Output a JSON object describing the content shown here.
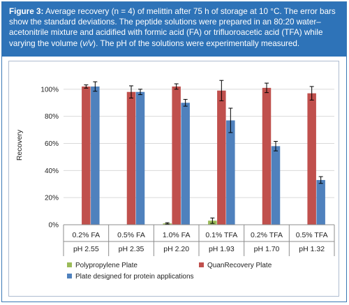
{
  "caption": {
    "label": "Figure 3:",
    "text_before_vv": " Average recovery (n = 4) of melittin after 75 h of storage at 10 °C. The error bars show the standard deviations. The peptide solutions were prepared in an 80:20 water–acetonitrile mixture and acidified with formic acid (FA) or trifluoroacetic acid (TFA) while varying the volume (",
    "vv": "v/v",
    "text_after_vv": "). The pH of the solutions were experimentally measured."
  },
  "chart_data": {
    "type": "bar",
    "title": "",
    "xlabel": "",
    "ylabel": "Recovery",
    "ylim": [
      0,
      120
    ],
    "yticks": [
      "0%",
      "20%",
      "40%",
      "60%",
      "80%",
      "100%"
    ],
    "categories": [
      "0.2% FA",
      "0.5% FA",
      "1.0% FA",
      "0.1% TFA",
      "0.2% TFA",
      "0.5% TFA"
    ],
    "categories_ph": [
      "pH 2.55",
      "pH 2.35",
      "pH 2.20",
      "pH 1.93",
      "pH 1.70",
      "pH 1.32"
    ],
    "grid": true,
    "legend_position": "bottom",
    "series": [
      {
        "name": "Polypropylene Plate",
        "color": "#9bbb59",
        "values": [
          0,
          0,
          1,
          3,
          0,
          0
        ],
        "errors": [
          0,
          0,
          0.5,
          2,
          0,
          0
        ]
      },
      {
        "name": "QuanRecovery Plate",
        "color": "#c0504d",
        "values": [
          102,
          98,
          102,
          99,
          101,
          97
        ],
        "errors": [
          1.2,
          4.5,
          2,
          7.5,
          3.5,
          5
        ]
      },
      {
        "name": "Plate designed for protein applications",
        "color": "#4f81bd",
        "values": [
          102,
          98,
          90,
          77,
          58,
          33
        ],
        "errors": [
          3.5,
          2,
          2.5,
          9,
          3.5,
          2.5
        ]
      }
    ]
  }
}
